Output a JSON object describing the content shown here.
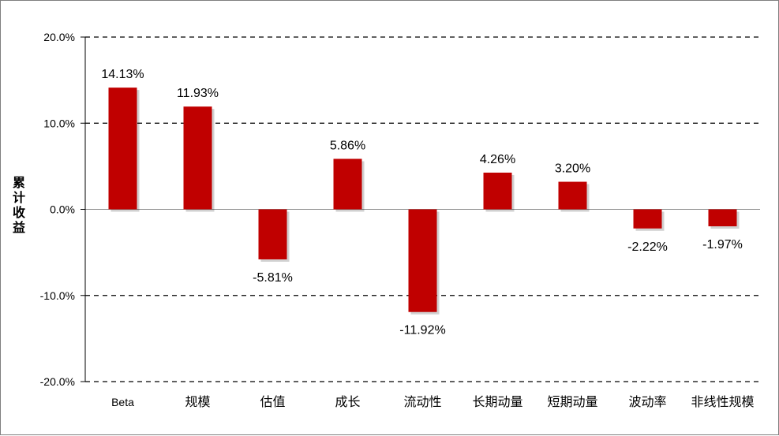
{
  "chart_data": {
    "type": "bar",
    "categories": [
      "Beta",
      "规模",
      "估值",
      "成长",
      "流动性",
      "长期动量",
      "短期动量",
      "波动率",
      "非线性规模"
    ],
    "values": [
      14.13,
      11.93,
      -5.81,
      5.86,
      -11.92,
      4.26,
      3.2,
      -2.22,
      -1.97
    ],
    "data_labels": [
      "14.13%",
      "11.93%",
      "-5.81%",
      "5.86%",
      "-11.92%",
      "4.26%",
      "3.20%",
      "-2.22%",
      "-1.97%"
    ],
    "ylabel": "累计收益",
    "ylim": [
      -20,
      20
    ],
    "yticks": [
      20,
      10,
      0,
      -10,
      -20
    ],
    "ytick_labels": [
      "20.0%",
      "10.0%",
      "0.0%",
      "-10.0%",
      "-20.0%"
    ],
    "grid": "dashed-horizontal",
    "legend": "none",
    "bar_color": "#C00000"
  }
}
